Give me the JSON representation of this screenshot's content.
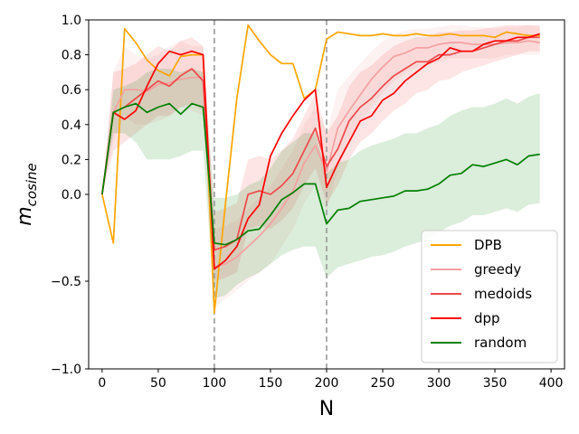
{
  "chart_data": {
    "type": "line",
    "xlabel": "N",
    "ylabel": "m",
    "ylabel_sub": "cosine",
    "xlim": [
      -12,
      412
    ],
    "ylim": [
      -1.0,
      1.0
    ],
    "xticks": [
      0,
      50,
      100,
      150,
      200,
      250,
      300,
      350,
      400
    ],
    "yticks": [
      -1.0,
      -0.5,
      0.0,
      0.2,
      0.4,
      0.6,
      0.8,
      1.0
    ],
    "ytick_labels": [
      "−1.0",
      "−0.5",
      "0.0",
      "0.2",
      "0.4",
      "0.6",
      "0.8",
      "1.0"
    ],
    "vlines": [
      100,
      200
    ],
    "legend_position": "lower right",
    "series": [
      {
        "name": "DPB",
        "color": "#ffa500",
        "x": [
          0,
          10,
          20,
          30,
          40,
          50,
          60,
          70,
          80,
          90,
          100,
          110,
          120,
          130,
          140,
          150,
          160,
          170,
          180,
          190,
          200,
          210,
          220,
          230,
          240,
          250,
          260,
          270,
          280,
          290,
          300,
          310,
          320,
          330,
          340,
          350,
          360,
          370,
          380,
          390
        ],
        "values": [
          0.0,
          -0.28,
          0.95,
          0.87,
          0.77,
          0.71,
          0.68,
          0.79,
          0.8,
          0.8,
          -0.68,
          -0.05,
          0.55,
          0.97,
          0.88,
          0.8,
          0.75,
          0.75,
          0.55,
          0.6,
          0.89,
          0.93,
          0.92,
          0.91,
          0.91,
          0.92,
          0.91,
          0.91,
          0.92,
          0.91,
          0.91,
          0.92,
          0.91,
          0.91,
          0.91,
          0.9,
          0.93,
          0.92,
          0.91,
          0.91
        ],
        "lower": null,
        "upper": null
      },
      {
        "name": "greedy",
        "color": "#f4a0a0",
        "x": [
          0,
          10,
          20,
          30,
          40,
          50,
          60,
          70,
          80,
          90,
          100,
          110,
          120,
          130,
          140,
          150,
          160,
          170,
          180,
          190,
          200,
          210,
          220,
          230,
          240,
          250,
          260,
          270,
          280,
          290,
          300,
          310,
          320,
          330,
          340,
          350,
          360,
          370,
          380,
          390
        ],
        "values": [
          0.0,
          0.47,
          0.6,
          0.6,
          0.59,
          0.63,
          0.64,
          0.66,
          0.67,
          0.67,
          -0.42,
          -0.4,
          -0.36,
          -0.3,
          -0.24,
          -0.17,
          -0.08,
          0.02,
          0.18,
          0.28,
          0.13,
          0.38,
          0.48,
          0.57,
          0.66,
          0.73,
          0.79,
          0.81,
          0.84,
          0.84,
          0.86,
          0.87,
          0.87,
          0.86,
          0.86,
          0.86,
          0.87,
          0.87,
          0.88,
          0.87
        ],
        "lower": [
          0.0,
          0.3,
          0.45,
          0.4,
          0.4,
          0.42,
          0.45,
          0.5,
          0.48,
          0.45,
          -0.65,
          -0.6,
          -0.55,
          -0.5,
          -0.45,
          -0.4,
          -0.3,
          -0.2,
          -0.05,
          0.05,
          -0.1,
          0.15,
          0.3,
          0.4,
          0.5,
          0.58,
          0.65,
          0.7,
          0.72,
          0.74,
          0.76,
          0.78,
          0.78,
          0.78,
          0.78,
          0.78,
          0.8,
          0.8,
          0.8,
          0.8
        ],
        "upper": [
          0.0,
          0.7,
          0.85,
          0.8,
          0.78,
          0.8,
          0.85,
          0.88,
          0.85,
          0.85,
          -0.2,
          -0.18,
          -0.15,
          -0.08,
          -0.02,
          0.05,
          0.15,
          0.25,
          0.4,
          0.5,
          0.35,
          0.6,
          0.68,
          0.75,
          0.82,
          0.88,
          0.92,
          0.94,
          0.95,
          0.95,
          0.96,
          0.97,
          0.97,
          0.96,
          0.96,
          0.95,
          0.96,
          0.96,
          0.97,
          0.96
        ]
      },
      {
        "name": "medoids",
        "color": "#f04848",
        "x": [
          0,
          10,
          20,
          30,
          40,
          50,
          60,
          70,
          80,
          90,
          100,
          110,
          120,
          130,
          140,
          150,
          160,
          170,
          180,
          190,
          200,
          210,
          220,
          230,
          240,
          250,
          260,
          270,
          280,
          290,
          300,
          310,
          320,
          330,
          340,
          350,
          360,
          370,
          380,
          390
        ],
        "values": [
          0.0,
          0.47,
          0.5,
          0.55,
          0.6,
          0.65,
          0.62,
          0.68,
          0.72,
          0.65,
          -0.32,
          -0.3,
          -0.26,
          0.0,
          0.02,
          0.0,
          0.05,
          0.12,
          0.25,
          0.38,
          0.16,
          0.26,
          0.42,
          0.5,
          0.55,
          0.62,
          0.68,
          0.72,
          0.76,
          0.76,
          0.8,
          0.8,
          0.82,
          0.82,
          0.84,
          0.86,
          0.88,
          0.88,
          0.9,
          0.9
        ],
        "lower": [
          0.0,
          0.25,
          0.3,
          0.35,
          0.4,
          0.45,
          0.45,
          0.5,
          0.52,
          0.48,
          -0.5,
          -0.48,
          -0.45,
          -0.2,
          -0.18,
          -0.2,
          -0.15,
          -0.08,
          0.05,
          0.15,
          -0.05,
          0.05,
          0.2,
          0.3,
          0.35,
          0.42,
          0.48,
          0.52,
          0.58,
          0.6,
          0.65,
          0.66,
          0.7,
          0.72,
          0.74,
          0.76,
          0.78,
          0.8,
          0.82,
          0.82
        ],
        "upper": [
          0.0,
          0.7,
          0.72,
          0.75,
          0.8,
          0.85,
          0.82,
          0.88,
          0.9,
          0.85,
          -0.1,
          -0.08,
          -0.05,
          0.2,
          0.22,
          0.2,
          0.25,
          0.32,
          0.45,
          0.58,
          0.35,
          0.45,
          0.62,
          0.7,
          0.74,
          0.8,
          0.85,
          0.88,
          0.9,
          0.9,
          0.93,
          0.93,
          0.94,
          0.94,
          0.95,
          0.96,
          0.97,
          0.97,
          0.97,
          0.97
        ]
      },
      {
        "name": "dpp",
        "color": "#ff0000",
        "x": [
          0,
          10,
          20,
          30,
          40,
          50,
          60,
          70,
          80,
          90,
          100,
          110,
          120,
          130,
          140,
          150,
          160,
          170,
          180,
          190,
          200,
          210,
          220,
          230,
          240,
          250,
          260,
          270,
          280,
          290,
          300,
          310,
          320,
          330,
          340,
          350,
          360,
          370,
          380,
          390
        ],
        "values": [
          0.0,
          0.47,
          0.43,
          0.48,
          0.62,
          0.75,
          0.82,
          0.8,
          0.82,
          0.8,
          -0.43,
          -0.38,
          -0.3,
          -0.14,
          -0.06,
          0.22,
          0.35,
          0.45,
          0.54,
          0.6,
          0.04,
          0.18,
          0.3,
          0.42,
          0.45,
          0.54,
          0.58,
          0.65,
          0.7,
          0.75,
          0.78,
          0.84,
          0.82,
          0.82,
          0.86,
          0.88,
          0.88,
          0.9,
          0.9,
          0.92
        ],
        "lower": null,
        "upper": null
      },
      {
        "name": "random",
        "color": "#008000",
        "x": [
          0,
          10,
          20,
          30,
          40,
          50,
          60,
          70,
          80,
          90,
          100,
          110,
          120,
          130,
          140,
          150,
          160,
          170,
          180,
          190,
          200,
          210,
          220,
          230,
          240,
          250,
          260,
          270,
          280,
          290,
          300,
          310,
          320,
          330,
          340,
          350,
          360,
          370,
          380,
          390
        ],
        "values": [
          0.0,
          0.47,
          0.5,
          0.52,
          0.47,
          0.5,
          0.52,
          0.46,
          0.52,
          0.5,
          -0.28,
          -0.29,
          -0.26,
          -0.21,
          -0.2,
          -0.12,
          -0.03,
          0.01,
          0.06,
          0.06,
          -0.17,
          -0.09,
          -0.08,
          -0.04,
          -0.03,
          -0.02,
          -0.01,
          0.02,
          0.02,
          0.03,
          0.06,
          0.11,
          0.12,
          0.17,
          0.16,
          0.18,
          0.2,
          0.17,
          0.22,
          0.23
        ],
        "lower": [
          0.0,
          0.35,
          0.35,
          0.3,
          0.2,
          0.2,
          0.2,
          0.22,
          0.25,
          0.25,
          -0.6,
          -0.58,
          -0.52,
          -0.48,
          -0.45,
          -0.4,
          -0.35,
          -0.32,
          -0.3,
          -0.3,
          -0.48,
          -0.42,
          -0.4,
          -0.38,
          -0.36,
          -0.35,
          -0.33,
          -0.3,
          -0.28,
          -0.26,
          -0.22,
          -0.18,
          -0.16,
          -0.12,
          -0.12,
          -0.1,
          -0.08,
          -0.1,
          -0.06,
          -0.05
        ],
        "upper": [
          0.0,
          0.6,
          0.62,
          0.65,
          0.7,
          0.72,
          0.72,
          0.7,
          0.72,
          0.7,
          -0.02,
          -0.02,
          0.0,
          0.05,
          0.08,
          0.15,
          0.25,
          0.3,
          0.35,
          0.35,
          0.12,
          0.18,
          0.2,
          0.25,
          0.28,
          0.3,
          0.32,
          0.35,
          0.35,
          0.38,
          0.4,
          0.45,
          0.48,
          0.5,
          0.5,
          0.52,
          0.55,
          0.52,
          0.56,
          0.58
        ]
      }
    ]
  }
}
